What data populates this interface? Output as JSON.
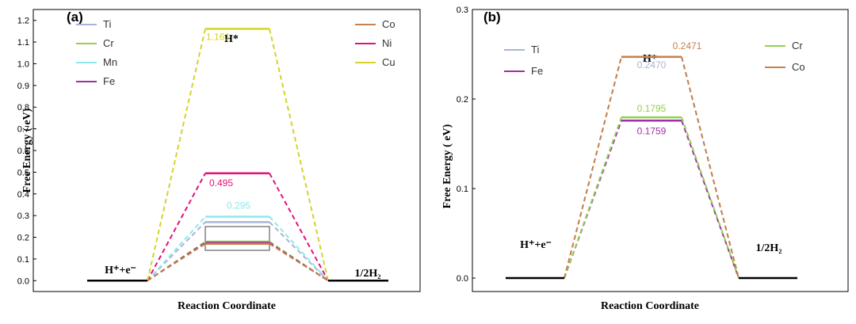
{
  "chart_data": [
    {
      "type": "line",
      "panel": "(a)",
      "xlabel": "Reaction Coordinate",
      "ylabel": "Free Energy ( eV)",
      "ylim": [
        -0.05,
        1.25
      ],
      "yticks": [
        "0.0",
        "0.1",
        "0.2",
        "0.3",
        "0.4",
        "0.5",
        "0.6",
        "0.7",
        "0.8",
        "0.9",
        "1.0",
        "1.1",
        "1.2"
      ],
      "states": [
        "H⁺+e⁻",
        "H*",
        "1/2H₂"
      ],
      "series": [
        {
          "name": "Ti",
          "color": "#a8b4d8",
          "values": [
            0,
            0.27,
            0
          ],
          "label": ""
        },
        {
          "name": "Cr",
          "color": "#92d050",
          "values": [
            0,
            0.18,
            0
          ],
          "label": ""
        },
        {
          "name": "Mn",
          "color": "#8ee8ec",
          "values": [
            0,
            0.295,
            0
          ],
          "label": "0.295"
        },
        {
          "name": "Fe",
          "color": "#a12fa3",
          "values": [
            0,
            0.175,
            0
          ],
          "label": ""
        },
        {
          "name": "Co",
          "color": "#c8814a",
          "values": [
            0,
            0.17,
            0
          ],
          "label": ""
        },
        {
          "name": "Ni",
          "color": "#e0137a",
          "values": [
            0,
            0.495,
            0
          ],
          "label": "0.495"
        },
        {
          "name": "Cu",
          "color": "#d4d42a",
          "values": [
            0,
            1.161,
            0
          ],
          "label": "1.161"
        }
      ],
      "legend_left": [
        "Ti",
        "Cr",
        "Mn",
        "Fe"
      ],
      "legend_right": [
        "Co",
        "Ni",
        "Cu"
      ]
    },
    {
      "type": "line",
      "panel": "(b)",
      "xlabel": "Reaction Coordinate",
      "ylabel": "Free Energy ( eV)",
      "ylim": [
        -0.015,
        0.3
      ],
      "yticks": [
        "0.0",
        "0.1",
        "0.2",
        "0.3"
      ],
      "states": [
        "H⁺+e⁻",
        "H*",
        "1/2H₂"
      ],
      "series": [
        {
          "name": "Ti",
          "color": "#a8b4d8",
          "values": [
            0,
            0.247,
            0
          ],
          "label": "0.2470"
        },
        {
          "name": "Fe",
          "color": "#a12fa3",
          "values": [
            0,
            0.1759,
            0
          ],
          "label": "0.1759"
        },
        {
          "name": "Cr",
          "color": "#92d050",
          "values": [
            0,
            0.1795,
            0
          ],
          "label": "0.1795"
        },
        {
          "name": "Co",
          "color": "#c8814a",
          "values": [
            0,
            0.2471,
            0
          ],
          "label": "0.2471"
        }
      ],
      "legend_left": [
        "Ti",
        "Fe"
      ],
      "legend_right": [
        "Cr",
        "Co"
      ]
    }
  ]
}
